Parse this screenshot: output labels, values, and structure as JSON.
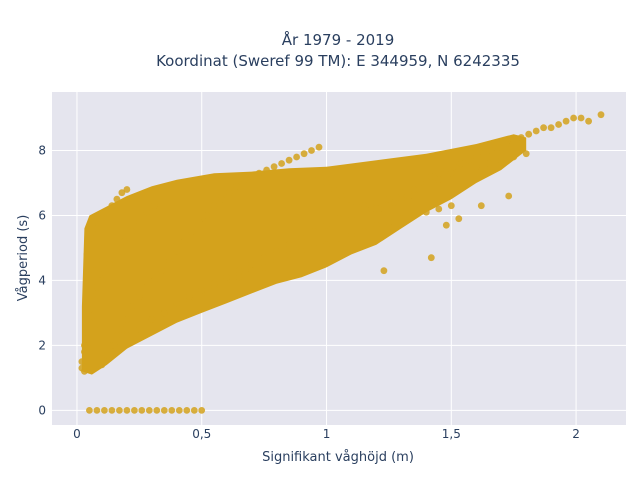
{
  "chart_data": {
    "type": "scatter",
    "title_lines": [
      "År 1979 - 2019",
      "Koordinat (Sweref 99 TM): E 344959, N 6242335"
    ],
    "xlabel": "Signifikant våghöjd (m)",
    "ylabel": "Vågperiod (s)",
    "xlim": [
      -0.1,
      2.2
    ],
    "ylim": [
      -0.45,
      9.8
    ],
    "x_ticks": [
      0,
      0.5,
      1,
      1.5,
      2
    ],
    "x_tick_labels": [
      "0",
      "0,5",
      "1",
      "1,5",
      "2"
    ],
    "y_ticks": [
      0,
      2,
      4,
      6,
      8
    ],
    "y_tick_labels": [
      "0",
      "2",
      "4",
      "6",
      "8"
    ],
    "grid": true,
    "marker_color": "#d4a21c",
    "plot_bg": "#e5e5ee",
    "series": [
      {
        "note": "dense scatter band approximated by representative points",
        "x": [
          0.02,
          0.03,
          0.04,
          0.05,
          0.06,
          0.07,
          0.08,
          0.09,
          0.03,
          0.05,
          0.07,
          0.09,
          0.02,
          0.04,
          0.06,
          0.08,
          0.03,
          0.05,
          0.07,
          0.04,
          0.06,
          0.08,
          0.1,
          0.12,
          0.14,
          0.16,
          0.18,
          0.2,
          0.1,
          0.12,
          0.14,
          0.16,
          0.18,
          0.2,
          0.1,
          0.13,
          0.16,
          0.19,
          0.22,
          0.25,
          0.28,
          0.31,
          0.22,
          0.25,
          0.28,
          0.31,
          0.34,
          0.37,
          0.4,
          0.43,
          0.46,
          0.49,
          0.52,
          0.55,
          0.58,
          0.61,
          0.64,
          0.67,
          0.7,
          0.73,
          0.76,
          0.79,
          0.82,
          0.85,
          0.88,
          0.91,
          0.94,
          0.97,
          1.0,
          1.03,
          1.06,
          1.09,
          1.12,
          1.15,
          1.18,
          1.21,
          1.24,
          1.27,
          1.3,
          1.33,
          1.36,
          1.39,
          1.42,
          1.45,
          1.48,
          1.51,
          1.54,
          1.57,
          1.6,
          1.63,
          1.66,
          1.69,
          1.72,
          1.75,
          1.78,
          1.81,
          1.84,
          1.87,
          1.9,
          1.93,
          1.96,
          1.99,
          2.02,
          2.05,
          2.1,
          0.3,
          0.35,
          0.4,
          0.45,
          0.5,
          0.55,
          0.6,
          0.65,
          0.7,
          0.75,
          0.8,
          0.85,
          0.9,
          0.95,
          1.0,
          1.05,
          1.1,
          1.15,
          1.2,
          1.25,
          1.3,
          1.35,
          1.4,
          1.45,
          1.5,
          0.15,
          0.2,
          0.25,
          0.3,
          0.35,
          0.4,
          0.45,
          0.5,
          0.55,
          0.6,
          0.65,
          0.7,
          0.75,
          0.8,
          0.85,
          0.9,
          0.95,
          1.0,
          1.05,
          1.1,
          1.15,
          1.2,
          1.25,
          1.3,
          1.35,
          1.4,
          1.45,
          1.5,
          1.55,
          1.6,
          1.65,
          1.7,
          1.75,
          1.8,
          0.05,
          0.08,
          0.11,
          0.14,
          0.17,
          0.2,
          0.23,
          0.26,
          0.29,
          0.32,
          0.35,
          0.38,
          0.41,
          0.44,
          0.47,
          0.5,
          1.23,
          1.42,
          1.48,
          1.53,
          1.62,
          1.73
        ],
        "y": [
          1.3,
          1.8,
          2.4,
          3.1,
          3.8,
          4.3,
          4.6,
          5.0,
          2.0,
          2.8,
          3.5,
          4.2,
          1.5,
          2.2,
          2.9,
          3.6,
          1.2,
          1.9,
          2.6,
          4.8,
          5.3,
          5.6,
          5.9,
          6.1,
          6.3,
          6.5,
          6.7,
          6.8,
          1.4,
          1.7,
          2.0,
          2.3,
          2.5,
          2.8,
          4.0,
          4.5,
          5.0,
          5.2,
          5.5,
          5.8,
          6.1,
          6.3,
          3.2,
          3.5,
          3.8,
          4.0,
          4.3,
          4.6,
          4.9,
          5.2,
          5.5,
          5.8,
          6.0,
          6.3,
          6.5,
          6.7,
          6.9,
          7.1,
          7.2,
          7.3,
          7.4,
          7.5,
          7.6,
          7.7,
          7.8,
          7.9,
          8.0,
          8.1,
          7.0,
          6.8,
          6.6,
          6.5,
          6.4,
          6.3,
          6.2,
          6.2,
          6.3,
          6.4,
          6.5,
          6.6,
          6.8,
          7.0,
          7.2,
          7.3,
          7.4,
          7.5,
          7.6,
          7.7,
          7.8,
          7.9,
          8.0,
          8.1,
          8.2,
          8.3,
          8.4,
          8.5,
          8.6,
          8.7,
          8.7,
          8.8,
          8.9,
          9.0,
          9.0,
          8.9,
          9.1,
          2.8,
          3.0,
          3.2,
          3.4,
          3.6,
          3.8,
          4.0,
          4.1,
          4.3,
          4.4,
          4.6,
          4.8,
          4.9,
          5.0,
          5.1,
          5.3,
          5.4,
          5.5,
          5.7,
          5.8,
          5.9,
          6.0,
          6.1,
          6.2,
          6.3,
          2.0,
          2.3,
          2.5,
          2.8,
          3.0,
          3.3,
          3.5,
          3.7,
          3.9,
          4.1,
          4.3,
          4.5,
          4.7,
          4.9,
          5.1,
          5.3,
          5.5,
          5.7,
          5.9,
          6.0,
          6.2,
          6.4,
          6.5,
          6.7,
          6.8,
          7.0,
          7.1,
          7.3,
          7.4,
          7.5,
          7.6,
          7.7,
          7.8,
          7.9,
          0,
          0,
          0,
          0,
          0,
          0,
          0,
          0,
          0,
          0,
          0,
          0,
          0,
          0,
          0,
          0,
          4.3,
          4.7,
          5.7,
          5.9,
          6.3,
          6.6
        ]
      }
    ]
  }
}
